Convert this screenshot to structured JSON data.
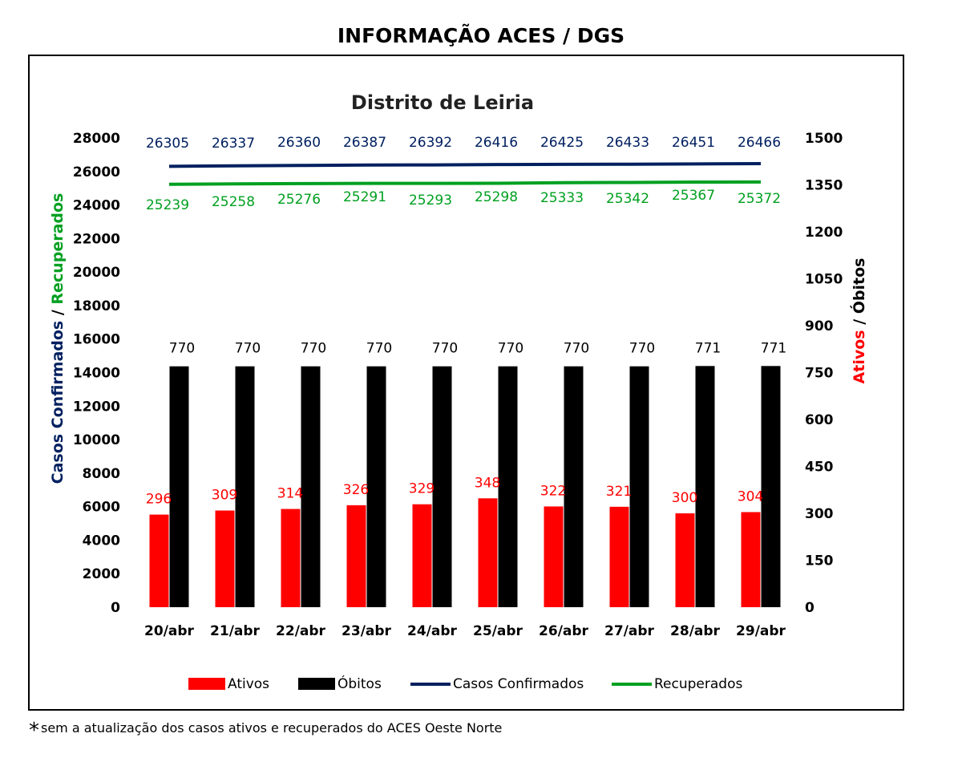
{
  "page_title": "INFORMAÇÃO ACES / DGS",
  "footnote": {
    "marker": "*",
    "text": "sem a atualização dos casos ativos e recuperados do ACES Oeste Norte"
  },
  "colors": {
    "ativos": "#ff0000",
    "obitos": "#000000",
    "confirmados": "#002060",
    "recuperados": "#00a020",
    "ativos_label": "#ff0000",
    "confirmados_label": "#002060",
    "recuperados_label": "#00a020"
  },
  "chart_data": {
    "type": "bar",
    "title": "Distrito de Leiria",
    "categories": [
      "20/abr",
      "21/abr",
      "22/abr",
      "23/abr",
      "24/abr",
      "25/abr",
      "26/abr",
      "27/abr",
      "28/abr",
      "29/abr"
    ],
    "left_axis": {
      "label_part1": "Casos Confirmados",
      "label_sep": " / ",
      "label_part2": "Recuperados",
      "range": [
        0,
        28000
      ],
      "ticks": [
        0,
        2000,
        4000,
        6000,
        8000,
        10000,
        12000,
        14000,
        16000,
        18000,
        20000,
        22000,
        24000,
        26000,
        28000
      ]
    },
    "right_axis": {
      "label_part1": "Ativos",
      "label_sep": " / ",
      "label_part2": "Óbitos",
      "range": [
        0,
        1500
      ],
      "ticks": [
        0,
        150,
        300,
        450,
        600,
        750,
        900,
        1050,
        1200,
        1350,
        1500
      ]
    },
    "series": [
      {
        "name": "Ativos",
        "type": "bar",
        "axis": "right",
        "values": [
          296,
          309,
          314,
          326,
          329,
          348,
          322,
          321,
          300,
          304
        ]
      },
      {
        "name": "Óbitos",
        "type": "bar",
        "axis": "right",
        "values": [
          770,
          770,
          770,
          770,
          770,
          770,
          770,
          770,
          771,
          771
        ]
      },
      {
        "name": "Casos Confirmados",
        "type": "line",
        "axis": "left",
        "values": [
          26305,
          26337,
          26360,
          26387,
          26392,
          26416,
          26425,
          26433,
          26451,
          26466
        ]
      },
      {
        "name": "Recuperados",
        "type": "line",
        "axis": "left",
        "values": [
          25239,
          25258,
          25276,
          25291,
          25293,
          25298,
          25333,
          25342,
          25367,
          25372
        ]
      }
    ],
    "grid": false,
    "legend_position": "bottom"
  }
}
